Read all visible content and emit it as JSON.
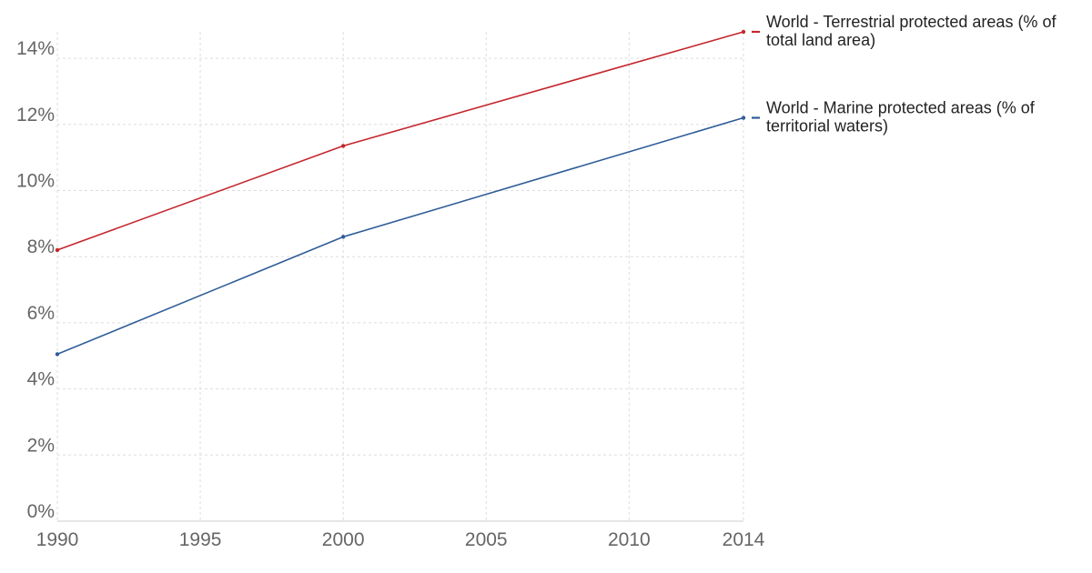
{
  "chart_data": {
    "type": "line",
    "title": "",
    "xlabel": "",
    "ylabel": "",
    "x": [
      1990,
      2000,
      2014
    ],
    "xlim": [
      1990,
      2014
    ],
    "ylim": [
      0,
      14.8
    ],
    "x_ticks": [
      1990,
      1995,
      2000,
      2005,
      2010,
      2014
    ],
    "x_tick_labels": [
      "1990",
      "1995",
      "2000",
      "2005",
      "2010",
      "2014"
    ],
    "y_ticks": [
      0,
      2,
      4,
      6,
      8,
      10,
      12,
      14
    ],
    "y_tick_labels": [
      "0%",
      "2%",
      "4%",
      "6%",
      "8%",
      "10%",
      "12%",
      "14%"
    ],
    "grid": true,
    "legend_placement": "right, at line ends",
    "series": [
      {
        "name": "World - Terrestrial protected areas (% of total land area)",
        "name_lines": [
          "World - Terrestrial protected areas (% of",
          "total land area)"
        ],
        "color": "#c4262e",
        "x": [
          1990,
          2000,
          2014
        ],
        "values": [
          8.2,
          11.35,
          14.8
        ]
      },
      {
        "name": "World - Marine protected areas (% of territorial waters)",
        "name_lines": [
          "World - Marine protected areas (% of",
          "territorial waters)"
        ],
        "color": "#2f5d98",
        "x": [
          1990,
          2000,
          2014
        ],
        "values": [
          5.05,
          8.6,
          12.2
        ]
      }
    ],
    "colors": {
      "grid": "#dddddd",
      "axis": "#cccccc",
      "tick_text": "#666666",
      "legend_text": "#222222"
    }
  }
}
